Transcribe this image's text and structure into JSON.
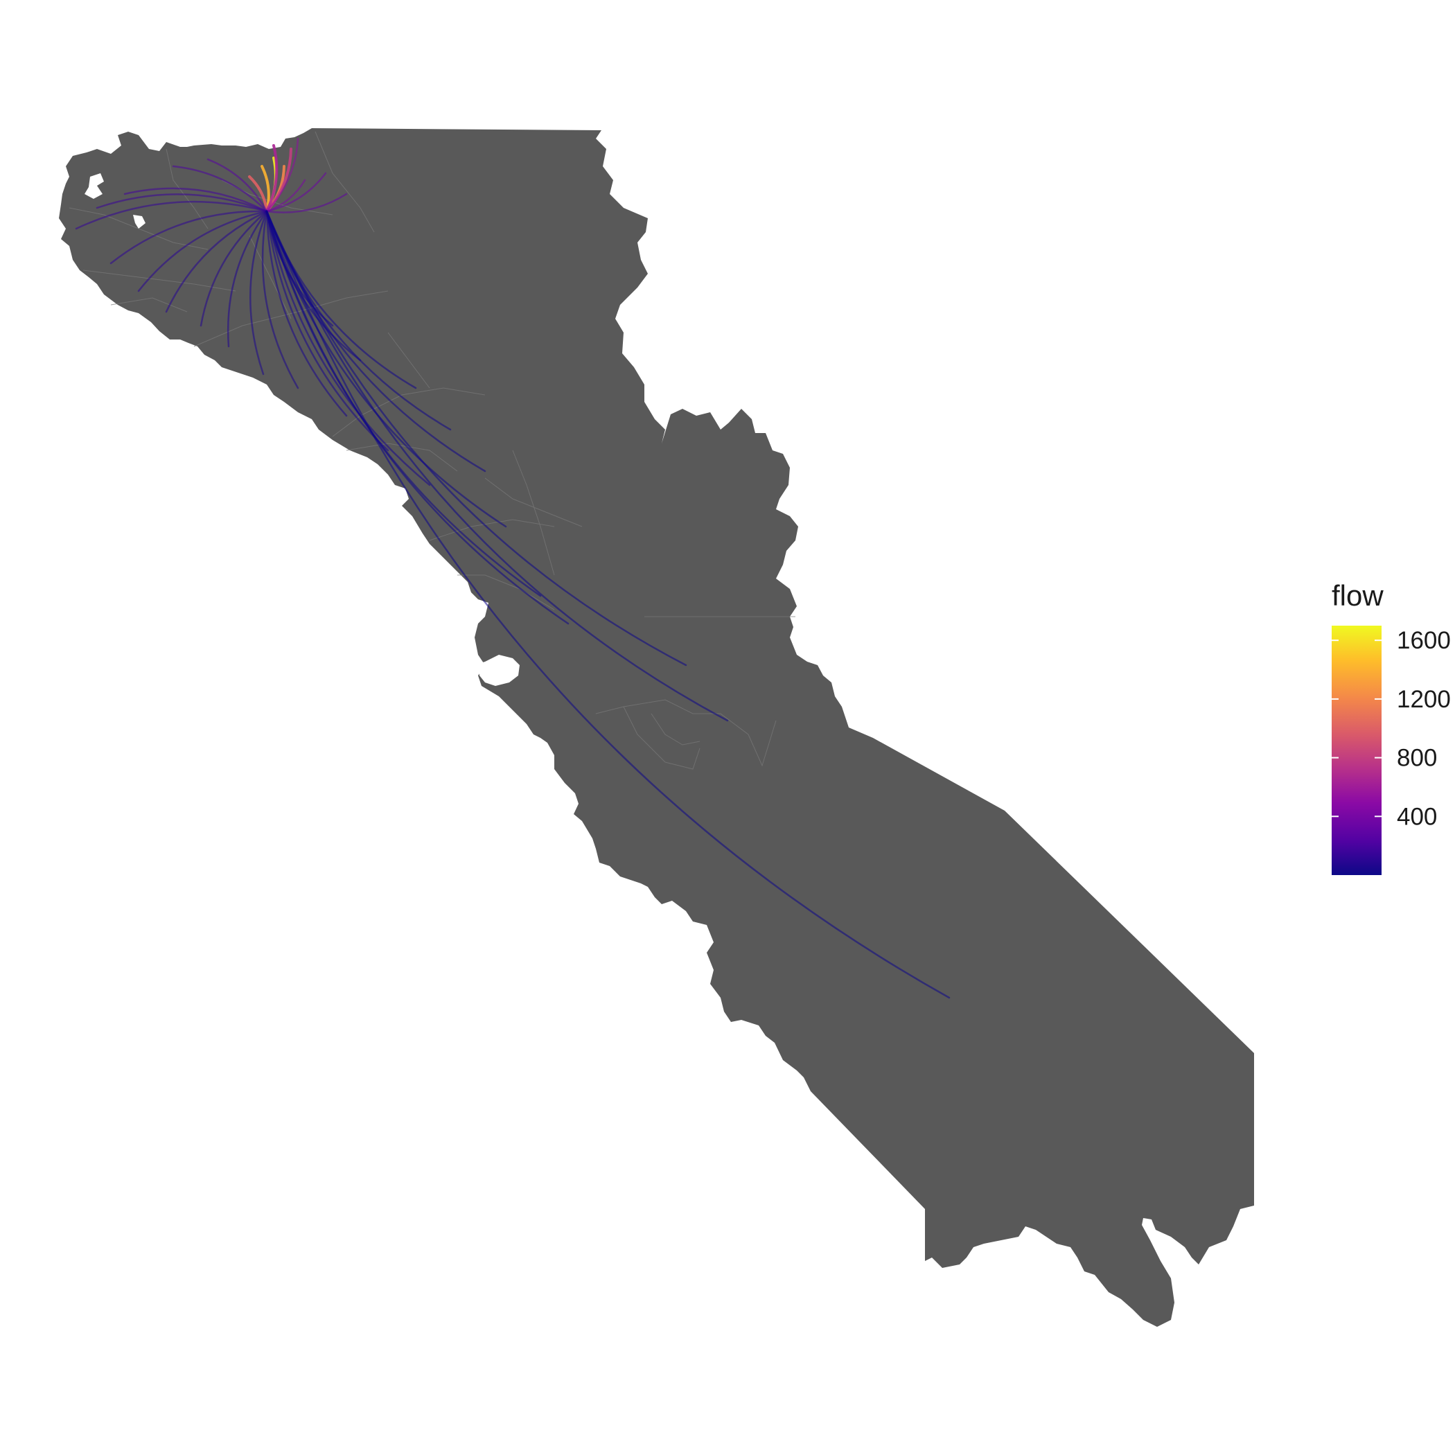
{
  "chart_data": {
    "type": "flow-map",
    "origin": "single origin in the northern bay area",
    "color_scale": {
      "title": "flow",
      "palette": "plasma",
      "colors": [
        "#0d0887",
        "#5302a3",
        "#8b0aa5",
        "#b83289",
        "#db5c68",
        "#f48849",
        "#febd2a",
        "#f0f921"
      ],
      "range": [
        0,
        1700
      ],
      "ticks": [
        400,
        800,
        1200,
        1600
      ]
    },
    "map_fill": "#595959",
    "background": "#ffffff",
    "flows": [
      {
        "flow": 1650
      },
      {
        "flow": 1400
      },
      {
        "flow": 1200
      },
      {
        "flow": 1000
      },
      {
        "flow": 800
      },
      {
        "flow": 650
      },
      {
        "flow": 500
      },
      {
        "flow": 420
      },
      {
        "flow": 350
      },
      {
        "flow": 300
      },
      {
        "flow": 260
      },
      {
        "flow": 220
      },
      {
        "flow": 190
      },
      {
        "flow": 160
      },
      {
        "flow": 140
      },
      {
        "flow": 120
      },
      {
        "flow": 100
      },
      {
        "flow": 90
      },
      {
        "flow": 80
      },
      {
        "flow": 70
      },
      {
        "flow": 60
      },
      {
        "flow": 55
      },
      {
        "flow": 50
      },
      {
        "flow": 45
      },
      {
        "flow": 40
      },
      {
        "flow": 35
      },
      {
        "flow": 30
      },
      {
        "flow": 25
      },
      {
        "flow": 20
      },
      {
        "flow": 18
      },
      {
        "flow": 15
      },
      {
        "flow": 12
      },
      {
        "flow": 10
      },
      {
        "flow": 8
      },
      {
        "flow": 6
      },
      {
        "flow": 5
      }
    ]
  }
}
